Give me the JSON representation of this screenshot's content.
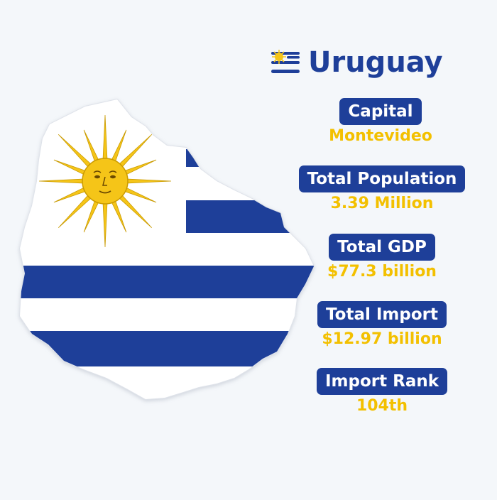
{
  "header": {
    "country": "Uruguay",
    "flag_icon": "uruguay-flag-icon"
  },
  "stats": [
    {
      "label": "Capital",
      "value": "Montevideo"
    },
    {
      "label": "Total Population",
      "value": "3.39 Million"
    },
    {
      "label": "Total GDP",
      "value": "$77.3 billion"
    },
    {
      "label": "Total Import",
      "value": "$12.97 billion"
    },
    {
      "label": "Import Rank",
      "value": "104th"
    }
  ],
  "colors": {
    "background": "#f4f7fa",
    "brand_blue": "#1e3f99",
    "accent_yellow": "#f3c000",
    "sun_yellow": "#f5c518"
  },
  "map": {
    "icon": "uruguay-map-flag-icon"
  }
}
